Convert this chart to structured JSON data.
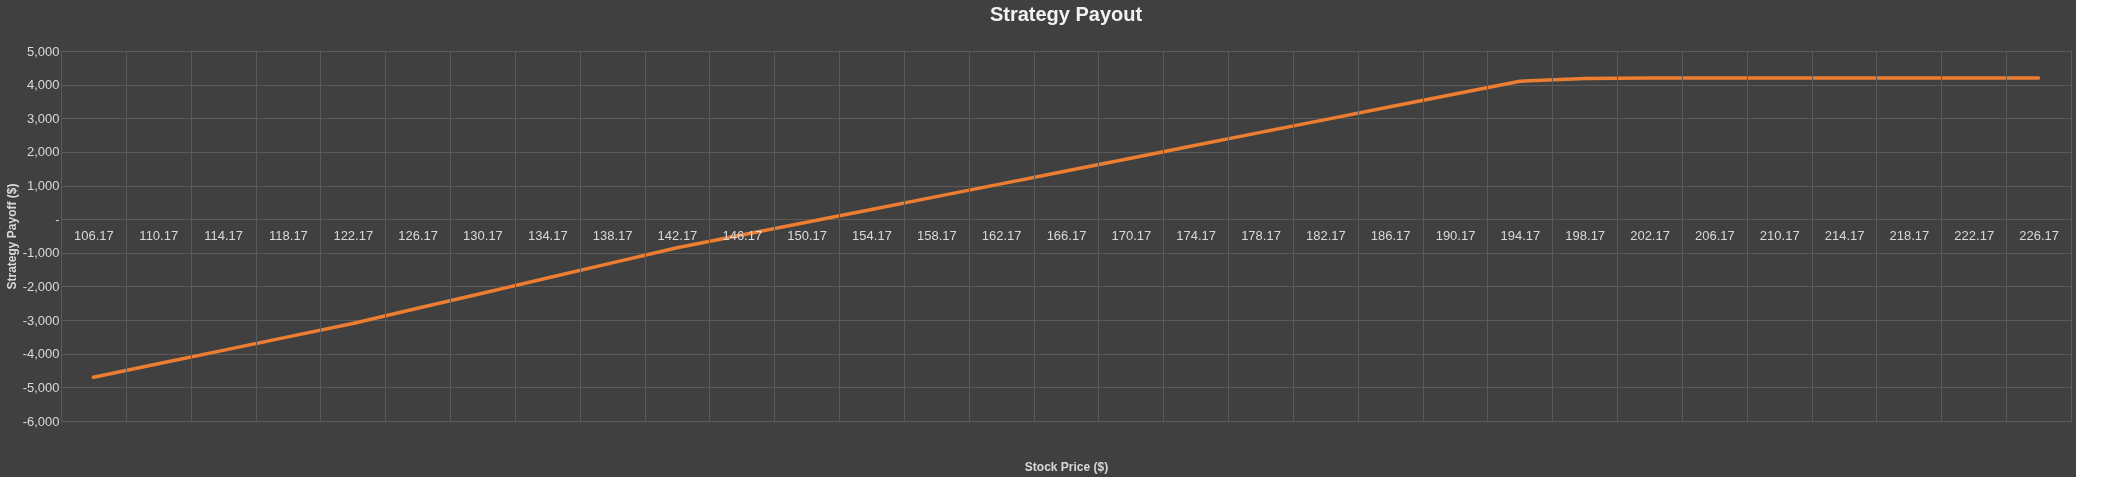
{
  "chart_data": {
    "type": "line",
    "title": "Strategy Payout",
    "xlabel": "Stock Price ($)",
    "ylabel": "Strategy Payoff ($)",
    "categories": [
      "106.17",
      "110.17",
      "114.17",
      "118.17",
      "122.17",
      "126.17",
      "130.17",
      "134.17",
      "138.17",
      "142.17",
      "146.17",
      "150.17",
      "154.17",
      "158.17",
      "162.17",
      "166.17",
      "170.17",
      "174.17",
      "178.17",
      "182.17",
      "186.17",
      "190.17",
      "194.17",
      "198.17",
      "202.17",
      "206.17",
      "210.17",
      "214.17",
      "218.17",
      "222.17",
      "226.17"
    ],
    "series": [
      {
        "color": "#ed7d31",
        "values": [
          -4700,
          -4300,
          -3900,
          -3500,
          -3100,
          -2650,
          -2200,
          -1750,
          -1300,
          -850,
          -470,
          -90,
          290,
          670,
          1050,
          1430,
          1810,
          2200,
          2580,
          2960,
          3340,
          3720,
          4100,
          4180,
          4200,
          4200,
          4200,
          4200,
          4200,
          4200,
          4200
        ]
      }
    ],
    "ylim": [
      -6000,
      5000
    ],
    "yticks": [
      {
        "value": -6000,
        "label": "-6,000"
      },
      {
        "value": -5000,
        "label": "-5,000"
      },
      {
        "value": -4000,
        "label": "-4,000"
      },
      {
        "value": -3000,
        "label": "-3,000"
      },
      {
        "value": -2000,
        "label": "-2,000"
      },
      {
        "value": -1000,
        "label": "-1,000"
      },
      {
        "value": 0,
        "label": "-"
      },
      {
        "value": 1000,
        "label": "1,000"
      },
      {
        "value": 2000,
        "label": "2,000"
      },
      {
        "value": 3000,
        "label": "3,000"
      },
      {
        "value": 4000,
        "label": "4,000"
      },
      {
        "value": 5000,
        "label": "5,000"
      }
    ],
    "grid": true,
    "marker": "none",
    "line_style": "solid"
  }
}
